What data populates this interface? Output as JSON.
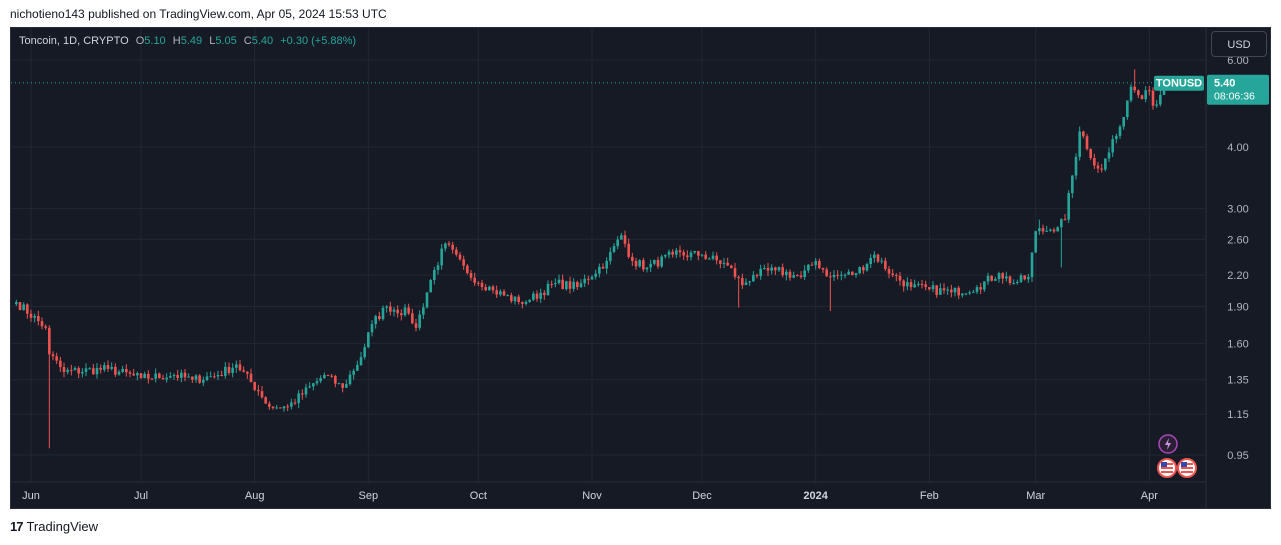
{
  "publisher_line": "nichotieno143 published on TradingView.com, Apr 05, 2024 15:53 UTC",
  "legend": {
    "title": "Toncoin, 1D, CRYPTO",
    "o_label": "O",
    "o": "5.10",
    "h_label": "H",
    "h": "5.49",
    "l_label": "L",
    "l": "5.05",
    "c_label": "C",
    "c": "5.40",
    "change": "+0.30 (+5.88%)"
  },
  "currency": "USD",
  "footer_brand": "TradingView",
  "footer_logo": "17",
  "colors": {
    "up": "#26a69a",
    "down": "#ef5350",
    "background": "#161a25",
    "grid": "#232733",
    "price_line": "#26a69a"
  },
  "chart_data": {
    "type": "candlestick",
    "symbol": "TONUSD",
    "scale": "log",
    "ylim": [
      0.86,
      6.0
    ],
    "yticks": [
      "6.00",
      "4.00",
      "3.00",
      "2.60",
      "2.20",
      "1.90",
      "1.60",
      "1.35",
      "1.15",
      "0.95"
    ],
    "xticks": [
      "Jun",
      "Jul",
      "Aug",
      "Sep",
      "Oct",
      "Nov",
      "Dec",
      "2024",
      "Feb",
      "Mar",
      "Apr"
    ],
    "last_price": "5.40",
    "countdown": "08:06:36",
    "grid": true,
    "close_anchors": [
      [
        "2023-05-28",
        1.94
      ],
      [
        "2023-06-05",
        1.72
      ],
      [
        "2023-06-06",
        1.52
      ],
      [
        "2023-06-10",
        1.4
      ],
      [
        "2023-06-22",
        1.42
      ],
      [
        "2023-07-01",
        1.36
      ],
      [
        "2023-07-10",
        1.38
      ],
      [
        "2023-07-15",
        1.35
      ],
      [
        "2023-07-22",
        1.38
      ],
      [
        "2023-07-27",
        1.45
      ],
      [
        "2023-08-02",
        1.28
      ],
      [
        "2023-08-05",
        1.19
      ],
      [
        "2023-08-10",
        1.19
      ],
      [
        "2023-08-20",
        1.38
      ],
      [
        "2023-08-25",
        1.3
      ],
      [
        "2023-08-30",
        1.5
      ],
      [
        "2023-09-02",
        1.75
      ],
      [
        "2023-09-06",
        1.9
      ],
      [
        "2023-09-12",
        1.84
      ],
      [
        "2023-09-14",
        1.72
      ],
      [
        "2023-09-18",
        2.15
      ],
      [
        "2023-09-22",
        2.55
      ],
      [
        "2023-09-28",
        2.22
      ],
      [
        "2023-10-05",
        2.05
      ],
      [
        "2023-10-12",
        1.94
      ],
      [
        "2023-10-15",
        1.96
      ],
      [
        "2023-10-22",
        2.12
      ],
      [
        "2023-10-28",
        2.08
      ],
      [
        "2023-11-05",
        2.35
      ],
      [
        "2023-11-09",
        2.65
      ],
      [
        "2023-11-12",
        2.35
      ],
      [
        "2023-11-16",
        2.28
      ],
      [
        "2023-11-23",
        2.42
      ],
      [
        "2023-12-01",
        2.42
      ],
      [
        "2023-12-08",
        2.3
      ],
      [
        "2023-12-12",
        2.1
      ],
      [
        "2023-12-15",
        2.2
      ],
      [
        "2023-12-21",
        2.25
      ],
      [
        "2023-12-28",
        2.18
      ],
      [
        "2024-01-01",
        2.35
      ],
      [
        "2024-01-05",
        2.18
      ],
      [
        "2024-01-12",
        2.22
      ],
      [
        "2024-01-17",
        2.42
      ],
      [
        "2024-01-22",
        2.2
      ],
      [
        "2024-01-27",
        2.08
      ],
      [
        "2024-02-01",
        2.06
      ],
      [
        "2024-02-07",
        2.03
      ],
      [
        "2024-02-14",
        2.08
      ],
      [
        "2024-02-20",
        2.22
      ],
      [
        "2024-02-24",
        2.12
      ],
      [
        "2024-02-28",
        2.18
      ],
      [
        "2024-03-01",
        2.7
      ],
      [
        "2024-03-05",
        2.72
      ],
      [
        "2024-03-09",
        2.85
      ],
      [
        "2024-03-11",
        3.5
      ],
      [
        "2024-03-13",
        4.3
      ],
      [
        "2024-03-16",
        3.8
      ],
      [
        "2024-03-19",
        3.6
      ],
      [
        "2024-03-22",
        4.15
      ],
      [
        "2024-03-25",
        4.6
      ],
      [
        "2024-03-27",
        5.3
      ],
      [
        "2024-03-30",
        5.0
      ],
      [
        "2024-04-01",
        5.2
      ],
      [
        "2024-04-02",
        4.85
      ],
      [
        "2024-04-04",
        5.1
      ],
      [
        "2024-04-05",
        5.4
      ]
    ],
    "wick_spikes": [
      {
        "date": "2023-06-06",
        "low": 0.98
      },
      {
        "date": "2023-12-11",
        "low": 1.89
      },
      {
        "date": "2024-01-05",
        "low": 1.86
      },
      {
        "date": "2024-03-02",
        "high": 2.85
      },
      {
        "date": "2024-03-08",
        "low": 2.28
      },
      {
        "date": "2024-03-28",
        "high": 5.75
      }
    ]
  }
}
